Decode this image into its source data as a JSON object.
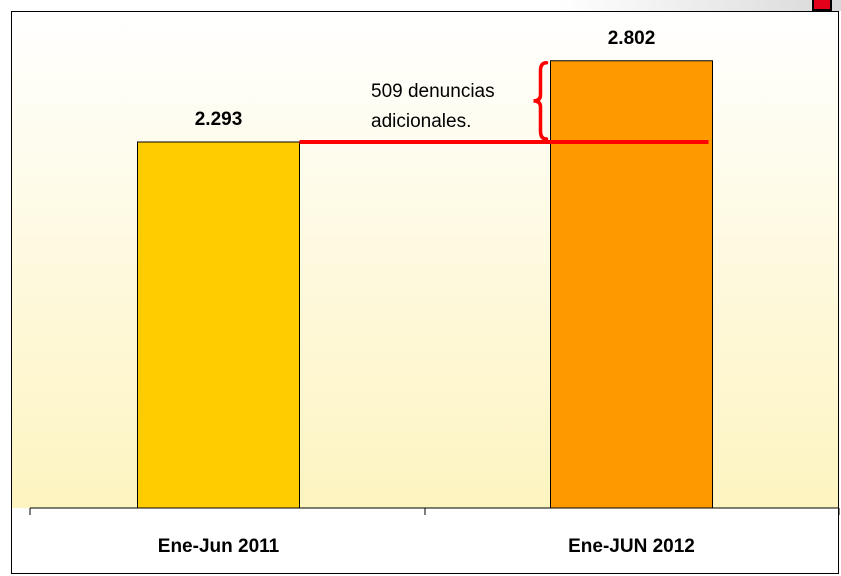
{
  "chart_data": {
    "type": "bar",
    "categories": [
      "Ene-Jun 2011",
      "Ene-JUN 2012"
    ],
    "values": [
      2293,
      2802
    ],
    "value_labels": [
      "2.293",
      "2.802"
    ],
    "bar_colors": [
      "#ffcc00",
      "#ff9900"
    ],
    "ylim": [
      0,
      3000
    ],
    "grid": false,
    "legend": "none",
    "title": "",
    "xlabel": "",
    "ylabel": "",
    "reference_line": {
      "value": 2293,
      "color": "#ff0000"
    },
    "annotation": {
      "lines": [
        "509 denuncias",
        "adicionales."
      ],
      "color": "#ff0000"
    }
  },
  "colors": {
    "plot_gradient_top": "#ffffff",
    "plot_gradient_bottom": "#fdf4c0",
    "badge": "#e3001b"
  }
}
